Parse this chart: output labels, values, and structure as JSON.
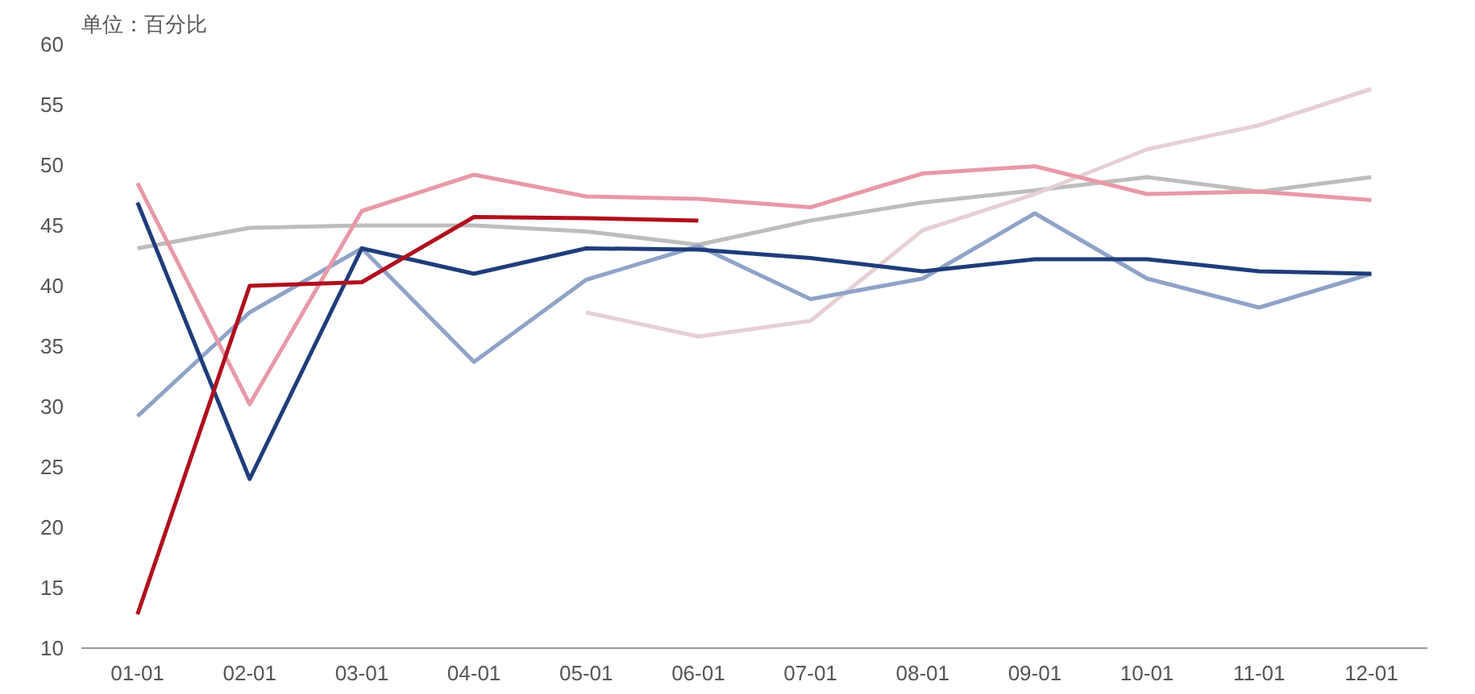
{
  "chart_data": {
    "type": "line",
    "ylabel": "单位：百分比",
    "categories": [
      "01-01",
      "02-01",
      "03-01",
      "04-01",
      "05-01",
      "06-01",
      "07-01",
      "08-01",
      "09-01",
      "10-01",
      "11-01",
      "12-01"
    ],
    "ylim": [
      10,
      60
    ],
    "yticks": [
      10,
      15,
      20,
      25,
      30,
      35,
      40,
      45,
      50,
      55,
      60
    ],
    "grid": false,
    "marker": "none",
    "line_style": "solid",
    "series": [
      {
        "color": "#bdbdbd",
        "values": [
          43.1,
          44.8,
          45,
          45,
          44.5,
          43.4,
          45.4,
          46.9,
          47.9,
          49,
          47.8,
          49
        ]
      },
      {
        "color": "#e6d0d4",
        "values": [
          null,
          null,
          null,
          null,
          37.8,
          35.8,
          37.1,
          44.6,
          47.6,
          51.3,
          53.3,
          56.3
        ]
      },
      {
        "color": "#8fa3c8",
        "values": [
          29.2,
          37.8,
          43.1,
          33.7,
          40.5,
          43.3,
          38.9,
          40.6,
          46,
          40.6,
          38.2,
          41
        ]
      },
      {
        "color": "#e899a8",
        "values": [
          48.5,
          30.2,
          46.2,
          49.2,
          47.4,
          47.2,
          46.5,
          49.3,
          49.9,
          47.6,
          47.8,
          47.1
        ]
      },
      {
        "color": "#1f3d7a",
        "values": [
          46.9,
          24,
          43.1,
          41,
          43.1,
          43,
          42.3,
          41.2,
          42.2,
          42.2,
          41.2,
          41
        ]
      },
      {
        "color": "#b0101e",
        "values": [
          12.8,
          40,
          40.3,
          45.7,
          45.6,
          45.4,
          null,
          null,
          null,
          null,
          null,
          null
        ]
      }
    ]
  }
}
